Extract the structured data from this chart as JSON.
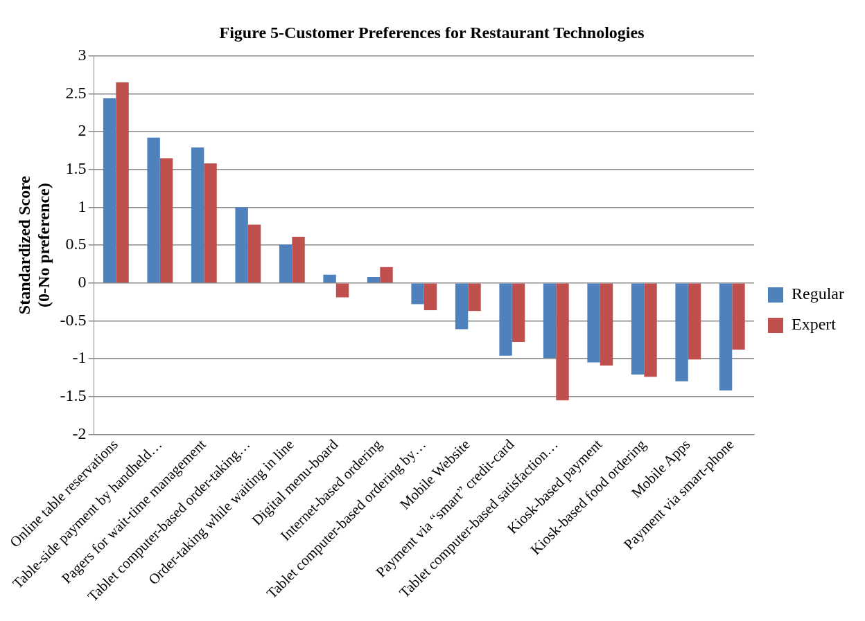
{
  "chart_data": {
    "type": "bar",
    "title": "Figure 5-Customer Preferences for Restaurant Technologies",
    "ylabel": "Standardized Score\n(0-No preference)",
    "categories": [
      "Online table reservations",
      "Table-side payment by handheld…",
      "Pagers for wait-time management",
      "Tablet computer-based order-taking…",
      "Order-taking while waiting in line",
      "Digital menu-board",
      "Internet-based ordering",
      "Tablet computer-based ordering by…",
      "Mobile Website",
      "Payment via “smart” credit-card",
      "Tablet computer-based satisfaction…",
      "Kiosk-based payment",
      "Kiosk-based food ordering",
      "Mobile Apps",
      "Payment via smart-phone"
    ],
    "series": [
      {
        "name": "Regular",
        "color": "#4f81bd",
        "values": [
          2.44,
          1.92,
          1.79,
          1.0,
          0.51,
          0.11,
          0.08,
          -0.28,
          -0.61,
          -0.96,
          -0.99,
          -1.05,
          -1.21,
          -1.3,
          -1.42
        ]
      },
      {
        "name": "Expert",
        "color": "#c0504d",
        "values": [
          2.65,
          1.65,
          1.58,
          0.77,
          0.61,
          -0.19,
          0.21,
          -0.36,
          -0.37,
          -0.78,
          -1.55,
          -1.09,
          -1.24,
          -1.01,
          -0.88
        ]
      }
    ],
    "ylim": [
      -2,
      3
    ],
    "yticks": [
      -2,
      -1.5,
      -1,
      -0.5,
      0,
      0.5,
      1,
      1.5,
      2,
      2.5,
      3
    ],
    "grid": "y",
    "legend": "right"
  }
}
